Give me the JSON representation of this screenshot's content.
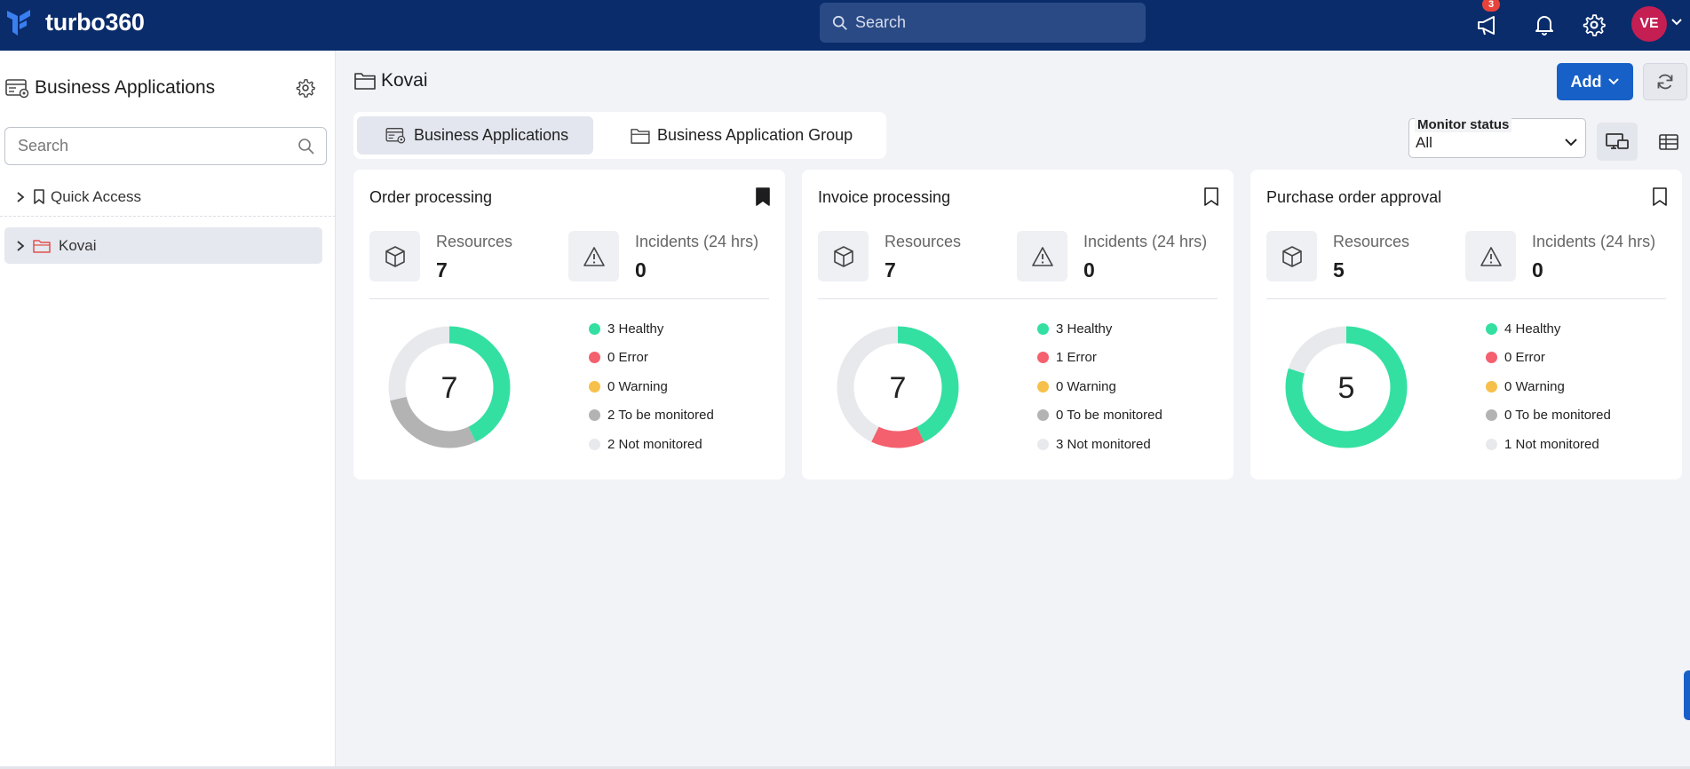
{
  "header": {
    "app_name": "turbo360",
    "search_placeholder": "Search",
    "notification_count": "3",
    "user_initials": "VE",
    "colors": {
      "bar": "#0a2c6b",
      "avatar": "#c41e53",
      "badge": "#e8433a"
    },
    "icons": [
      "megaphone-icon",
      "bell-icon",
      "gear-icon",
      "chevron-down-icon"
    ]
  },
  "sidebar": {
    "title": "Business Applications",
    "search_placeholder": "Search",
    "items": [
      {
        "label": "Quick Access",
        "icon": "bookmark-icon"
      },
      {
        "label": "Kovai",
        "icon": "folder-icon",
        "selected": true
      }
    ]
  },
  "main": {
    "folder_title": "Kovai",
    "add_label": "Add",
    "tabs": [
      {
        "label": "Business Applications",
        "active": true
      },
      {
        "label": "Business Application Group",
        "active": false
      }
    ],
    "monitor_status": {
      "label": "Monitor status",
      "value": "All"
    },
    "cards": [
      {
        "title": "Order processing",
        "bookmarked": true,
        "resources_label": "Resources",
        "resources": "7",
        "incidents_label": "Incidents (24 hrs)",
        "incidents": "0",
        "total": "7",
        "legend": [
          {
            "text": "3 Healthy",
            "count": 3,
            "color": "#33e0a1"
          },
          {
            "text": "0 Error",
            "count": 0,
            "color": "#f4606e"
          },
          {
            "text": "0 Warning",
            "count": 0,
            "color": "#f6c04a"
          },
          {
            "text": "2 To be monitored",
            "count": 2,
            "color": "#b3b3b3"
          },
          {
            "text": "2 Not monitored",
            "count": 2,
            "color": "#e8e9ed"
          }
        ]
      },
      {
        "title": "Invoice processing",
        "bookmarked": false,
        "resources_label": "Resources",
        "resources": "7",
        "incidents_label": "Incidents (24 hrs)",
        "incidents": "0",
        "total": "7",
        "legend": [
          {
            "text": "3 Healthy",
            "count": 3,
            "color": "#33e0a1"
          },
          {
            "text": "1 Error",
            "count": 1,
            "color": "#f4606e"
          },
          {
            "text": "0 Warning",
            "count": 0,
            "color": "#f6c04a"
          },
          {
            "text": "0 To be monitored",
            "count": 0,
            "color": "#b3b3b3"
          },
          {
            "text": "3 Not monitored",
            "count": 3,
            "color": "#e8e9ed"
          }
        ]
      },
      {
        "title": "Purchase order approval",
        "bookmarked": false,
        "resources_label": "Resources",
        "resources": "5",
        "incidents_label": "Incidents (24 hrs)",
        "incidents": "0",
        "total": "5",
        "legend": [
          {
            "text": "4 Healthy",
            "count": 4,
            "color": "#33e0a1"
          },
          {
            "text": "0 Error",
            "count": 0,
            "color": "#f4606e"
          },
          {
            "text": "0 Warning",
            "count": 0,
            "color": "#f6c04a"
          },
          {
            "text": "0 To be monitored",
            "count": 0,
            "color": "#b3b3b3"
          },
          {
            "text": "1 Not monitored",
            "count": 1,
            "color": "#e8e9ed"
          }
        ]
      }
    ]
  }
}
